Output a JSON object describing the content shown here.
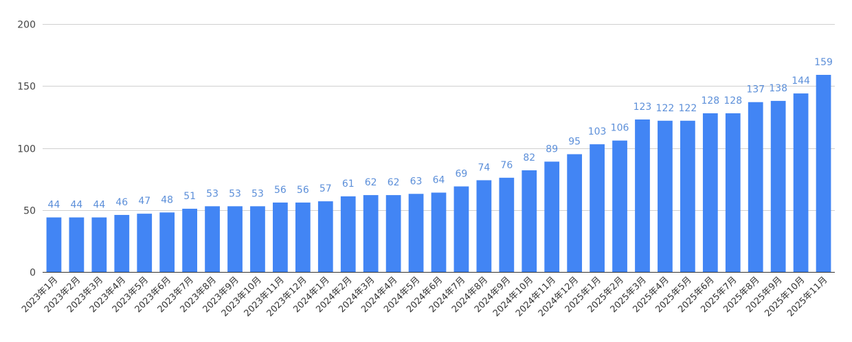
{
  "chart_data": {
    "type": "bar",
    "title": "",
    "xlabel": "",
    "ylabel": "",
    "ylim": [
      0,
      200
    ],
    "y_ticks": [
      0,
      50,
      100,
      150,
      200
    ],
    "grid": true,
    "legend": "none",
    "bar_color": "#4285f4",
    "label_color": "#5c8fd9",
    "categories": [
      "2023年1月",
      "2023年2月",
      "2023年3月",
      "2023年4月",
      "2023年5月",
      "2023年6月",
      "2023年7月",
      "2023年8月",
      "2023年9月",
      "2023年10月",
      "2023年11月",
      "2023年12月",
      "2024年1月",
      "2024年2月",
      "2024年3月",
      "2024年4月",
      "2024年5月",
      "2024年6月",
      "2024年7月",
      "2024年8月",
      "2024年9月",
      "2024年10月",
      "2024年11月",
      "2024年12月",
      "2025年1月",
      "2025年2月",
      "2025年3月",
      "2025年4月",
      "2025年5月",
      "2025年6月",
      "2025年7月",
      "2025年8月",
      "2025年9月",
      "2025年10月",
      "2025年11月"
    ],
    "values": [
      44,
      44,
      44,
      46,
      47,
      48,
      51,
      53,
      53,
      53,
      56,
      56,
      57,
      61,
      62,
      62,
      63,
      64,
      69,
      74,
      76,
      82,
      89,
      95,
      103,
      106,
      123,
      122,
      122,
      128,
      128,
      137,
      138,
      144,
      159
    ]
  }
}
